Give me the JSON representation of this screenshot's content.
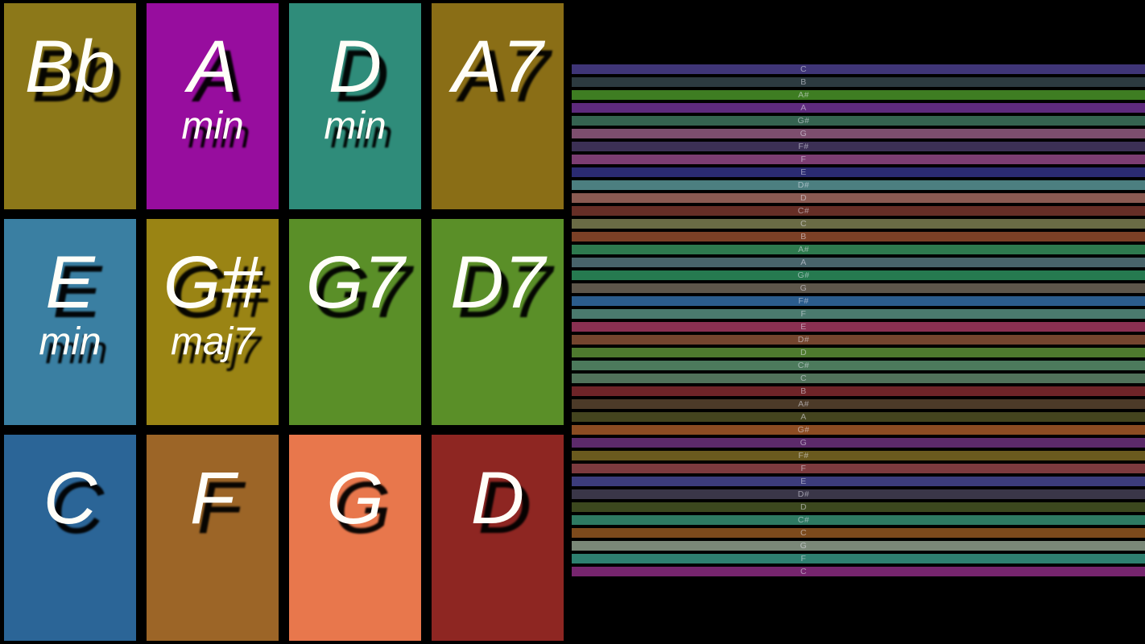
{
  "app": {
    "background_color": "#000000",
    "text_color": "#fffef8",
    "note_label_color": "#ebebf5",
    "note_label_opacity": 0.55
  },
  "chord_pads": {
    "pads": [
      {
        "main": "Bb",
        "sub": "",
        "color": "#8c7819"
      },
      {
        "main": "A",
        "sub": "min",
        "color": "#970d9e"
      },
      {
        "main": "D",
        "sub": "min",
        "color": "#2f8c7a"
      },
      {
        "main": "A7",
        "sub": "",
        "color": "#8a6e16"
      },
      {
        "main": "E",
        "sub": "min",
        "color": "#3a7fa2"
      },
      {
        "main": "G#",
        "sub": "maj7",
        "color": "#9a8414"
      },
      {
        "main": "G7",
        "sub": "",
        "color": "#5a8f28"
      },
      {
        "main": "D7",
        "sub": "",
        "color": "#5a8f28"
      },
      {
        "main": "C",
        "sub": "",
        "color": "#2b6597"
      },
      {
        "main": "F",
        "sub": "",
        "color": "#9c6527"
      },
      {
        "main": "G",
        "sub": "",
        "color": "#e8774c"
      },
      {
        "main": "D",
        "sub": "",
        "color": "#8e2622"
      }
    ]
  },
  "note_roll": {
    "rows": [
      {
        "label": "C",
        "color": "#3f3577"
      },
      {
        "label": "B",
        "color": "#2c3a40"
      },
      {
        "label": "A#",
        "color": "#3e7d22"
      },
      {
        "label": "A",
        "color": "#5e2a7d"
      },
      {
        "label": "G#",
        "color": "#356350"
      },
      {
        "label": "G",
        "color": "#7d4e6e"
      },
      {
        "label": "F#",
        "color": "#3c3055"
      },
      {
        "label": "F",
        "color": "#7c3d72"
      },
      {
        "label": "E",
        "color": "#2b2b72"
      },
      {
        "label": "D#",
        "color": "#4c7f80"
      },
      {
        "label": "D",
        "color": "#8a5a52"
      },
      {
        "label": "C#",
        "color": "#662e26"
      },
      {
        "label": "C",
        "color": "#6a6b45"
      },
      {
        "label": "B",
        "color": "#7c4026"
      },
      {
        "label": "A#",
        "color": "#2e7a4e"
      },
      {
        "label": "A",
        "color": "#48646a"
      },
      {
        "label": "G#",
        "color": "#267a50"
      },
      {
        "label": "G",
        "color": "#5d564a"
      },
      {
        "label": "F#",
        "color": "#2b5c8c"
      },
      {
        "label": "F",
        "color": "#4a7a6e"
      },
      {
        "label": "E",
        "color": "#8a3052"
      },
      {
        "label": "D#",
        "color": "#74452e"
      },
      {
        "label": "D",
        "color": "#4e7a2e"
      },
      {
        "label": "C#",
        "color": "#4c7a5c"
      },
      {
        "label": "C",
        "color": "#50725a"
      },
      {
        "label": "B",
        "color": "#6e2428"
      },
      {
        "label": "A#",
        "color": "#4c3a28"
      },
      {
        "label": "A",
        "color": "#44441e"
      },
      {
        "label": "G#",
        "color": "#8c4c22"
      },
      {
        "label": "G",
        "color": "#5c2a6a"
      },
      {
        "label": "F#",
        "color": "#6a5a1e"
      },
      {
        "label": "F",
        "color": "#7c3a3e"
      },
      {
        "label": "E",
        "color": "#3c3c7c"
      },
      {
        "label": "D#",
        "color": "#3a3648"
      },
      {
        "label": "D",
        "color": "#3c481e"
      },
      {
        "label": "C#",
        "color": "#2e7a62"
      },
      {
        "label": "C",
        "color": "#7c4a1c"
      },
      {
        "label": "G",
        "color": "#7a8878"
      },
      {
        "label": "F",
        "color": "#2e8070"
      },
      {
        "label": "C",
        "color": "#76256e"
      }
    ]
  }
}
